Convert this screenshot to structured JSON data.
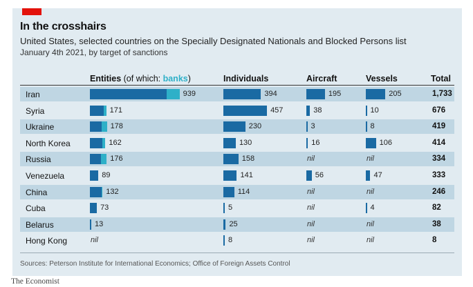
{
  "title": "In the crosshairs",
  "subtitle": "United States, selected countries on the Specially Designated Nationals and Blocked Persons list",
  "date_note": "January 4th 2021, by target of sanctions",
  "source": "Sources: Peterson Institute for International Economics; Office of Foreign Assets Control",
  "brand": "The Economist",
  "nil_label": "nil",
  "headers": {
    "entities": "Entities",
    "entities_note_open": " (of which: ",
    "banks": "banks",
    "entities_note_close": ")",
    "individuals": "Individuals",
    "aircraft": "Aircraft",
    "vessels": "Vessels",
    "total": "Total"
  },
  "colors": {
    "accent_red": "#e3120b",
    "bar": "#1a6aa3",
    "banks": "#2eb0c8",
    "panel": "#e1ebf1",
    "row_shade": "#bfd6e3"
  },
  "chart_data": {
    "type": "bar",
    "title": "In the crosshairs",
    "subtitle": "United States, selected countries on the Specially Designated Nationals and Blocked Persons list",
    "note": "January 4th 2021, by target of sanctions",
    "categories": [
      "Iran",
      "Syria",
      "Ukraine",
      "North Korea",
      "Russia",
      "Venezuela",
      "China",
      "Cuba",
      "Belarus",
      "Hong Kong"
    ],
    "series": [
      {
        "name": "Entities",
        "values": [
          939,
          171,
          178,
          162,
          176,
          89,
          132,
          73,
          13,
          null
        ]
      },
      {
        "name": "banks",
        "values": [
          135,
          25,
          55,
          30,
          60,
          0,
          12,
          0,
          0,
          null
        ]
      },
      {
        "name": "Individuals",
        "values": [
          394,
          457,
          230,
          130,
          158,
          141,
          114,
          5,
          25,
          8
        ]
      },
      {
        "name": "Aircraft",
        "values": [
          195,
          38,
          3,
          16,
          null,
          56,
          null,
          null,
          null,
          null
        ]
      },
      {
        "name": "Vessels",
        "values": [
          205,
          10,
          8,
          106,
          null,
          47,
          null,
          4,
          null,
          null
        ]
      }
    ],
    "totals": [
      1733,
      676,
      419,
      414,
      334,
      333,
      246,
      82,
      38,
      8
    ]
  }
}
